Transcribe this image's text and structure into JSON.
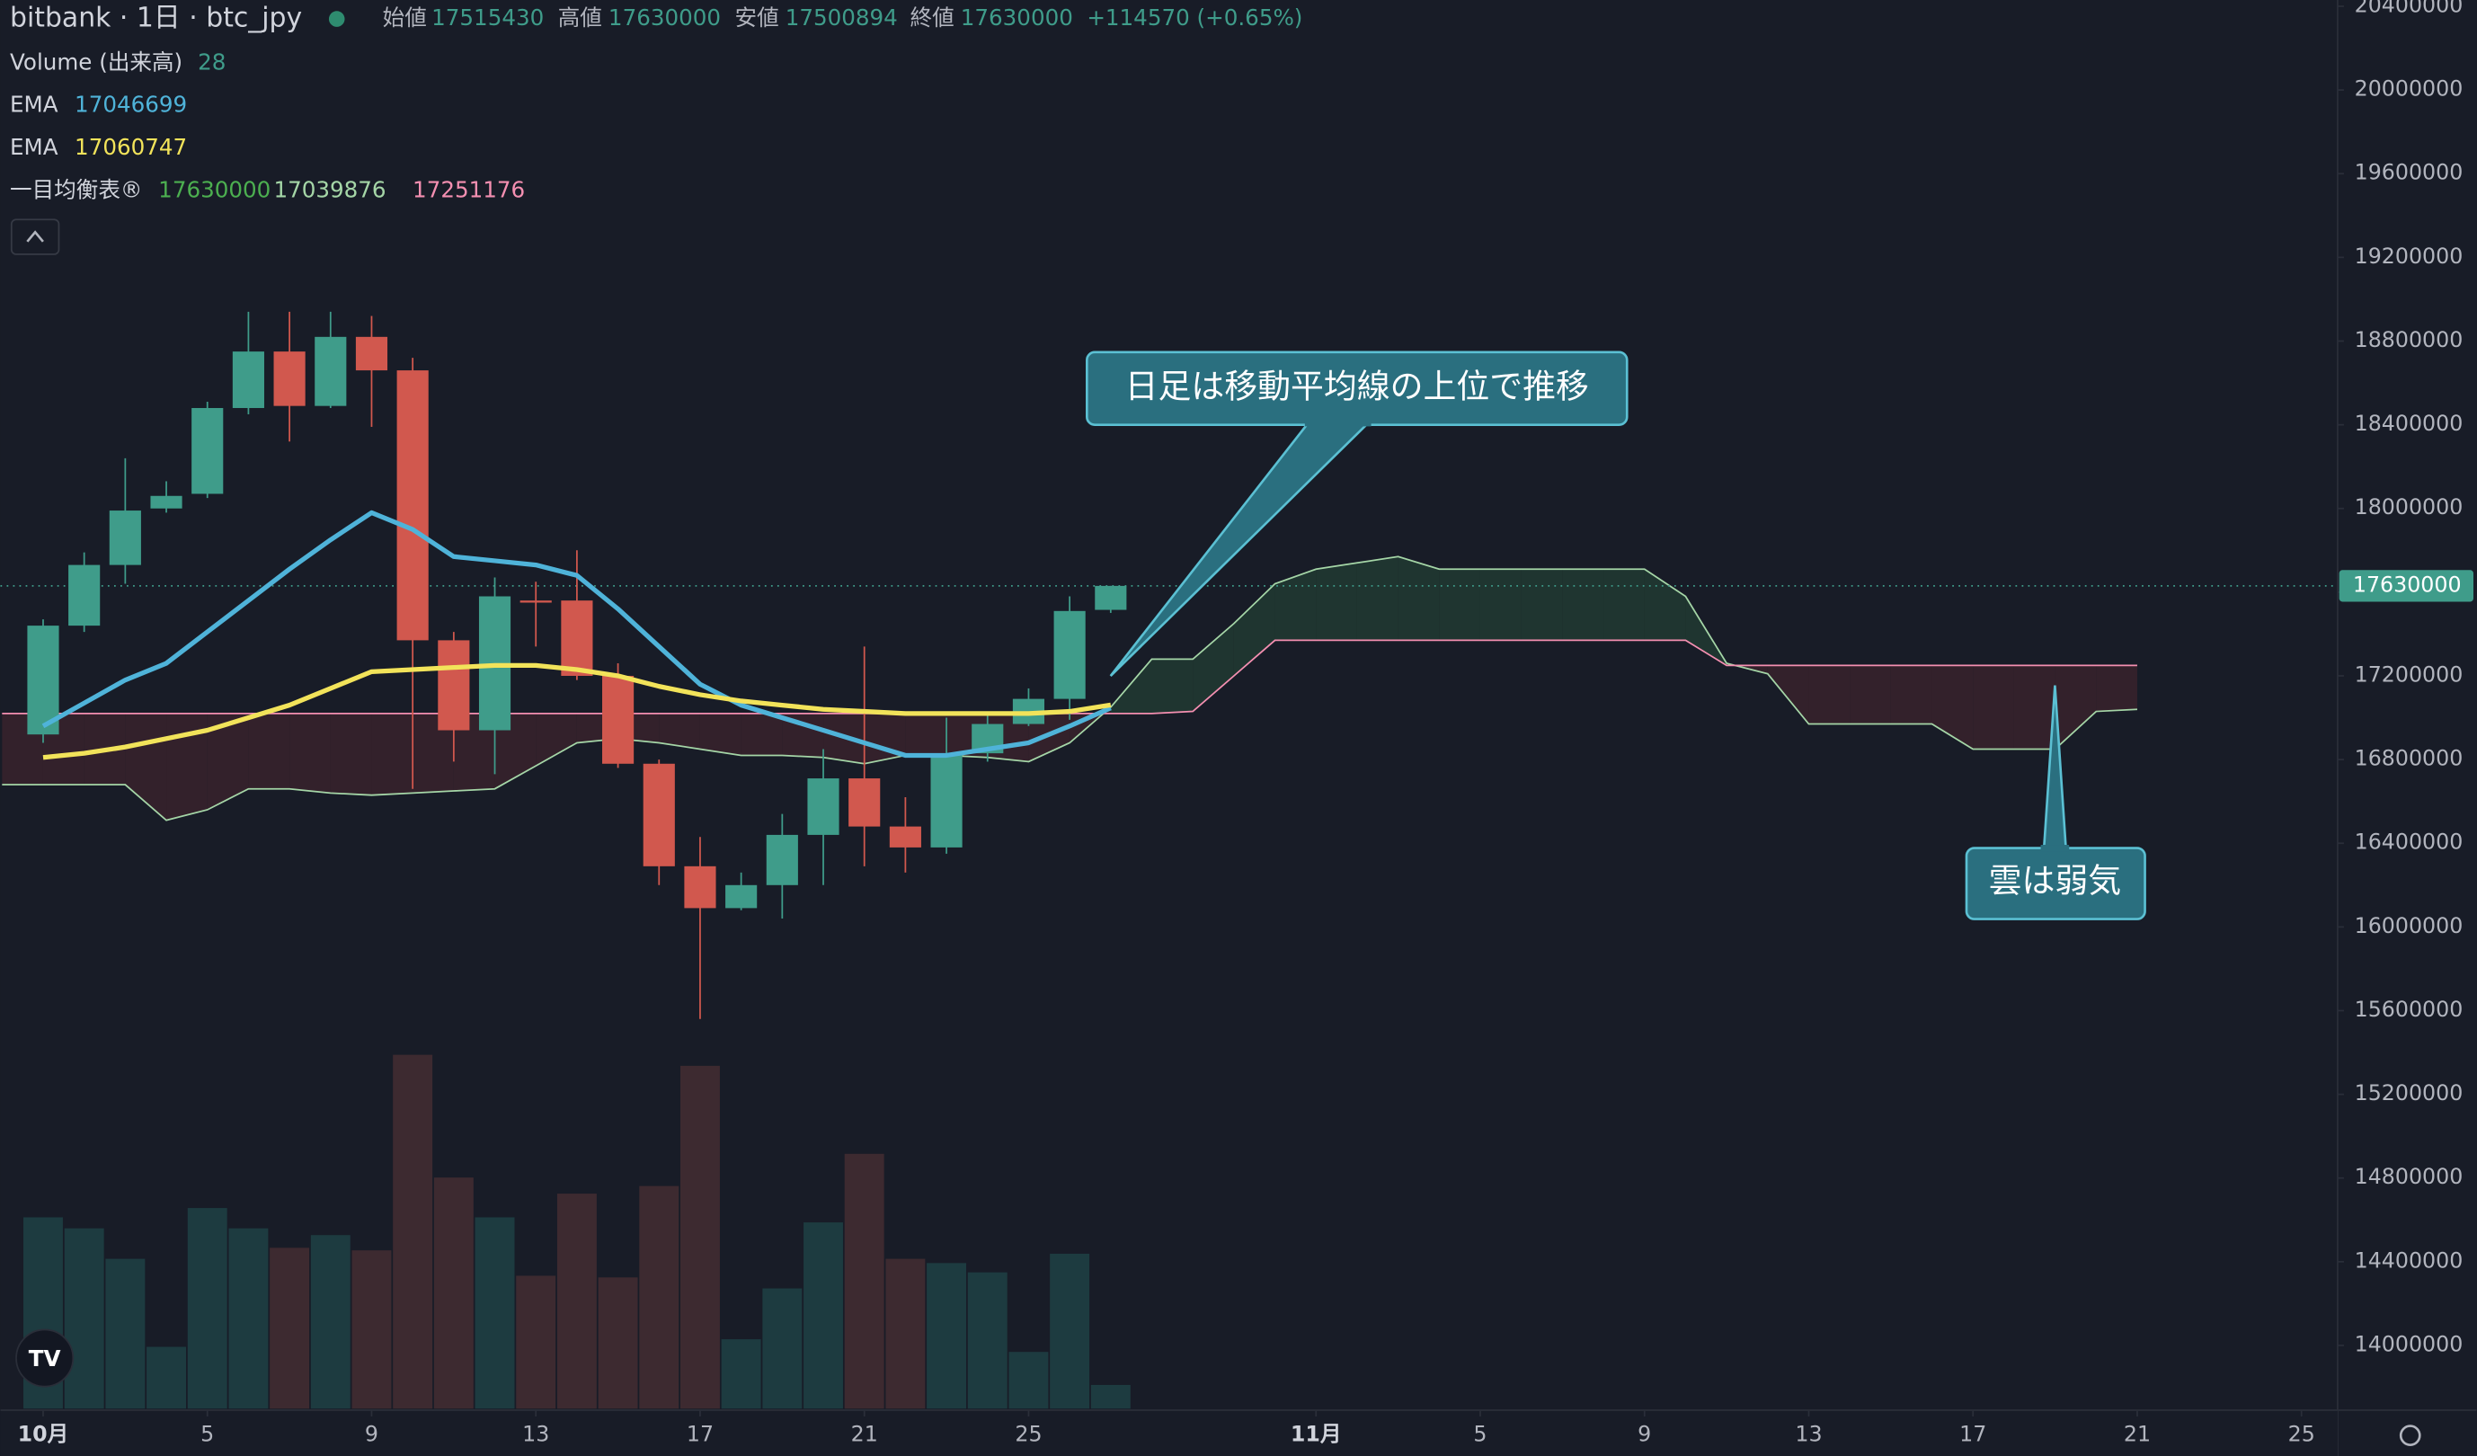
{
  "chart_data": {
    "type": "candlestick",
    "title": "bitbank · 1日 · btc_jpy",
    "ohlc": [
      {
        "label": "始値",
        "value": 17515430
      },
      {
        "label": "高値",
        "value": 17630000
      },
      {
        "label": "安値",
        "value": 17500894
      },
      {
        "label": "終値",
        "value": 17630000
      }
    ],
    "change": "+114570 (+0.65%)",
    "legend": [
      {
        "name": "Volume (出来高)",
        "values": [
          28
        ],
        "colors": [
          "#3f9c8a"
        ]
      },
      {
        "name": "EMA",
        "values": [
          17046699
        ],
        "colors": [
          "#4fb3d9"
        ]
      },
      {
        "name": "EMA",
        "values": [
          17060747
        ],
        "colors": [
          "#f2e35a"
        ]
      },
      {
        "name": "一目均衡表®",
        "values": [
          17630000,
          17039876,
          17251176
        ],
        "colors": [
          "#4caf50",
          "#a5d6a7",
          "#f48fb1"
        ]
      }
    ],
    "up_color": "#3f9c8a",
    "down_color": "#d1584e",
    "candles": {
      "x": [
        1,
        2,
        3,
        4,
        5,
        6,
        7,
        8,
        9,
        10,
        11,
        12,
        13,
        14,
        15,
        16,
        17,
        18,
        19,
        20,
        21,
        22,
        23,
        24,
        25,
        26,
        27
      ],
      "open": [
        16920000,
        17440000,
        17730000,
        18000000,
        18070000,
        18480000,
        18750000,
        18490000,
        18820000,
        18660000,
        17370000,
        16940000,
        17560000,
        17560000,
        17200000,
        16780000,
        16290000,
        16090000,
        16200000,
        16440000,
        16710000,
        16480000,
        16380000,
        16830000,
        16970000,
        17090000,
        17515430
      ],
      "high": [
        17470000,
        17790000,
        18240000,
        18130000,
        18510000,
        18940000,
        18940000,
        18940000,
        18920000,
        18720000,
        17410000,
        17670000,
        17650000,
        17800000,
        17260000,
        16800000,
        16430000,
        16260000,
        16540000,
        16850000,
        17340000,
        16620000,
        17000000,
        17030000,
        17140000,
        17580000,
        17630000
      ],
      "low": [
        16880000,
        17410000,
        17640000,
        17980000,
        18050000,
        18450000,
        18320000,
        18480000,
        18390000,
        16660000,
        16790000,
        16730000,
        17340000,
        17180000,
        16760000,
        16200000,
        15560000,
        16080000,
        16040000,
        16200000,
        16290000,
        16260000,
        16350000,
        16790000,
        16960000,
        16990000,
        17500894
      ],
      "close": [
        17440000,
        17730000,
        17990000,
        18060000,
        18480000,
        18750000,
        18490000,
        18820000,
        18660000,
        17370000,
        16940000,
        17580000,
        17550000,
        17200000,
        16780000,
        16290000,
        16090000,
        16200000,
        16440000,
        16710000,
        16480000,
        16380000,
        16830000,
        16970000,
        17090000,
        17510000,
        17630000
      ]
    },
    "volume": {
      "values": [
        226,
        213,
        177,
        73,
        237,
        213,
        190,
        205,
        187,
        418,
        273,
        226,
        157,
        254,
        155,
        263,
        405,
        82,
        142,
        220,
        301,
        177,
        172,
        161,
        67,
        183,
        28
      ],
      "ylim": [
        0,
        500
      ]
    },
    "series": [
      {
        "name": "EMA",
        "color": "#4fb3d9",
        "x": [
          1,
          2,
          3,
          4,
          5,
          6,
          7,
          8,
          9,
          10,
          11,
          12,
          13,
          14,
          15,
          16,
          17,
          18,
          19,
          20,
          21,
          22,
          23,
          24,
          25,
          26,
          27
        ],
        "values": [
          16960000,
          17070000,
          17180000,
          17260000,
          17410000,
          17560000,
          17710000,
          17850000,
          17980000,
          17900000,
          17770000,
          17750000,
          17730000,
          17680000,
          17520000,
          17340000,
          17160000,
          17060000,
          17000000,
          16940000,
          16880000,
          16820000,
          16820000,
          16850000,
          16880000,
          16960000,
          17046699
        ]
      },
      {
        "name": "EMA",
        "color": "#f2e35a",
        "x": [
          1,
          2,
          3,
          4,
          5,
          6,
          7,
          8,
          9,
          10,
          11,
          12,
          13,
          14,
          15,
          16,
          17,
          18,
          19,
          20,
          21,
          22,
          23,
          24,
          25,
          26,
          27
        ],
        "values": [
          16810000,
          16830000,
          16860000,
          16900000,
          16940000,
          17000000,
          17060000,
          17140000,
          17220000,
          17230000,
          17240000,
          17250000,
          17250000,
          17230000,
          17200000,
          17150000,
          17110000,
          17080000,
          17060000,
          17040000,
          17030000,
          17020000,
          17020000,
          17020000,
          17020000,
          17030000,
          17060747
        ]
      }
    ],
    "ichimoku": {
      "x": [
        0,
        1,
        2,
        3,
        4,
        5,
        6,
        7,
        8,
        9,
        10,
        11,
        12,
        13,
        14,
        15,
        16,
        17,
        18,
        19,
        20,
        21,
        22,
        23,
        24,
        25,
        26,
        27,
        28,
        29,
        30,
        31,
        32,
        33,
        34,
        35,
        36,
        37,
        38,
        39,
        40,
        41,
        42,
        43,
        44,
        45,
        46,
        47,
        48,
        49,
        50,
        51,
        52
      ],
      "span_a": [
        16680000,
        16680000,
        16680000,
        16680000,
        16510000,
        16560000,
        16660000,
        16660000,
        16640000,
        16630000,
        16640000,
        16650000,
        16660000,
        16770000,
        16880000,
        16900000,
        16880000,
        16850000,
        16820000,
        16820000,
        16810000,
        16780000,
        16820000,
        16820000,
        16810000,
        16790000,
        16880000,
        17050000,
        17280000,
        17280000,
        17450000,
        17640000,
        17710000,
        17740000,
        17770000,
        17710000,
        17710000,
        17710000,
        17710000,
        17710000,
        17710000,
        17580000,
        17260000,
        17210000,
        16970000,
        16970000,
        16970000,
        16970000,
        16850000,
        16850000,
        16850000,
        17030000,
        17040000
      ],
      "span_b": [
        17020000,
        17020000,
        17020000,
        17020000,
        17020000,
        17020000,
        17020000,
        17020000,
        17020000,
        17020000,
        17020000,
        17020000,
        17020000,
        17020000,
        17020000,
        17020000,
        17020000,
        17020000,
        17020000,
        17020000,
        17020000,
        17020000,
        17020000,
        17020000,
        17020000,
        17020000,
        17020000,
        17020000,
        17020000,
        17030000,
        17200000,
        17370000,
        17370000,
        17370000,
        17370000,
        17370000,
        17370000,
        17370000,
        17370000,
        17370000,
        17370000,
        17370000,
        17250000,
        17250000,
        17250000,
        17250000,
        17250000,
        17250000,
        17250000,
        17250000,
        17250000,
        17250000,
        17250000
      ],
      "color_a": "#a5d6a7",
      "color_b": "#f48fb1",
      "fill_up": "#1f3530",
      "fill_down": "#33212b"
    },
    "last_price": 17630000,
    "xlim": [
      -0.04,
      56.88
    ],
    "xticks": [
      {
        "value": 1,
        "label": "10月"
      },
      5,
      9,
      13,
      17,
      21,
      25,
      {
        "value": 32,
        "label": "11月"
      },
      {
        "value": 36,
        "label": "5"
      },
      {
        "value": 40,
        "label": "9"
      },
      {
        "value": 44,
        "label": "13"
      },
      {
        "value": 48,
        "label": "17"
      },
      {
        "value": 52,
        "label": "21"
      },
      {
        "value": 56,
        "label": "25"
      }
    ],
    "ylim": [
      13698000,
      20430000
    ],
    "yticks": [
      14000000,
      14400000,
      14800000,
      15200000,
      15600000,
      16000000,
      16400000,
      16800000,
      17200000,
      17600000,
      18000000,
      18400000,
      18800000,
      19200000,
      19600000,
      20000000,
      20400000
    ],
    "grid": false,
    "annotations": [
      "日足は移動平均線の上位で推移",
      "雲は弱気"
    ]
  }
}
